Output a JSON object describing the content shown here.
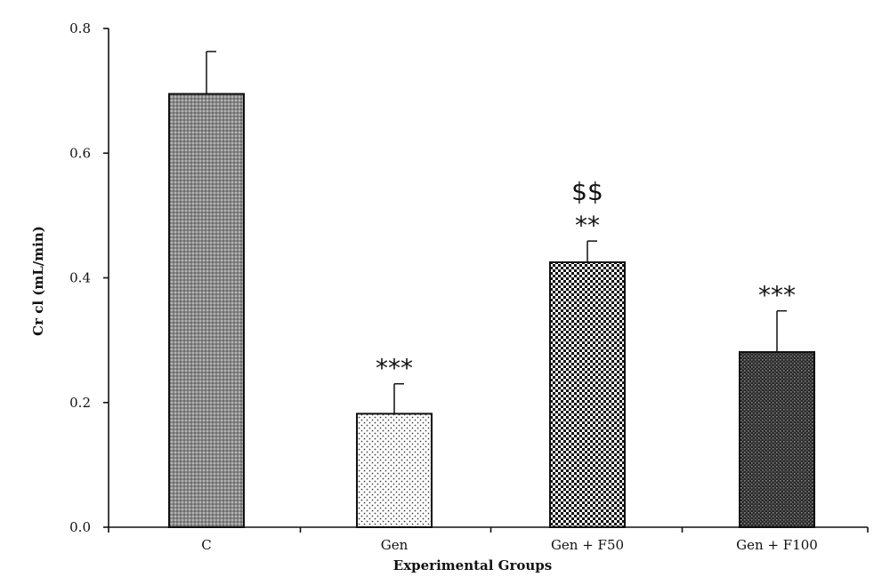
{
  "chart_data": {
    "type": "bar",
    "categories": [
      "C",
      "Gen",
      "Gen + F50",
      "Gen + F100"
    ],
    "values": [
      0.695,
      0.182,
      0.425,
      0.281
    ],
    "errors": [
      0.068,
      0.048,
      0.034,
      0.066
    ],
    "annotations": [
      [],
      [
        "***"
      ],
      [
        "**",
        "$$"
      ],
      [
        "***"
      ]
    ],
    "patterns": [
      "grey-dense",
      "sparse-dots",
      "checker-fine",
      "checker-dark"
    ],
    "title": "",
    "xlabel": "Experimental Groups",
    "ylabel": "Cr cl (mL/min)",
    "ylim": [
      0,
      0.8
    ],
    "yticks": [
      "0.0",
      "0.2",
      "0.4",
      "0.6",
      "0.8"
    ],
    "grid": false
  }
}
